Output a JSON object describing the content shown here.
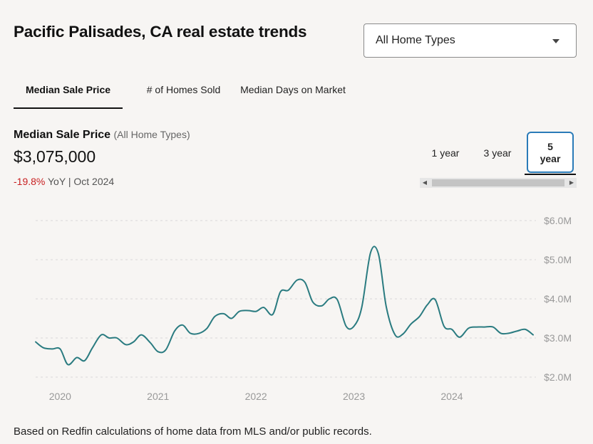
{
  "header": {
    "title": "Pacific Palisades, CA real estate trends"
  },
  "filter": {
    "selected": "All Home Types"
  },
  "tabs": [
    {
      "label": "Median Sale Price",
      "active": true
    },
    {
      "label": "# of Homes Sold",
      "active": false
    },
    {
      "label": "Median Days on Market",
      "active": false
    }
  ],
  "stat": {
    "title": "Median Sale Price",
    "subtitle": "(All Home Types)",
    "value": "$3,075,000",
    "yoy_change": "-19.8%",
    "yoy_label": "YoY",
    "separator": "|",
    "period": "Oct 2024"
  },
  "ranges": [
    {
      "label": "1 year",
      "active": false
    },
    {
      "label": "3 year",
      "active": false
    },
    {
      "label": "5 year",
      "active": true
    }
  ],
  "colors": {
    "line": "#2a7b80",
    "grid": "#d8d8d8",
    "tick": "#999999",
    "negative": "#c82021",
    "active_border": "#2a7bb8"
  },
  "footnote": "Based on Redfin calculations of home data from MLS and/or public records.",
  "chart_data": {
    "type": "line",
    "title": "",
    "xlabel": "",
    "ylabel": "",
    "ylim": [
      2.0,
      6.0
    ],
    "y_unit": "millions USD",
    "yticks": [
      2.0,
      3.0,
      4.0,
      5.0,
      6.0
    ],
    "ytick_labels": [
      "$2.0M",
      "$3.0M",
      "$4.0M",
      "$5.0M",
      "$6.0M"
    ],
    "xticks": [
      2020,
      2021,
      2022,
      2023,
      2024
    ],
    "xtick_labels": [
      "2020",
      "2021",
      "2022",
      "2023",
      "2024"
    ],
    "xlim": [
      2019.75,
      2024.83
    ],
    "grid": true,
    "legend": "none",
    "series": [
      {
        "values": [
          [
            2019.75,
            2.9
          ],
          [
            2019.83,
            2.75
          ],
          [
            2019.92,
            2.72
          ],
          [
            2020.0,
            2.72
          ],
          [
            2020.08,
            2.32
          ],
          [
            2020.17,
            2.5
          ],
          [
            2020.25,
            2.42
          ],
          [
            2020.33,
            2.75
          ],
          [
            2020.42,
            3.08
          ],
          [
            2020.5,
            3.0
          ],
          [
            2020.58,
            3.0
          ],
          [
            2020.67,
            2.83
          ],
          [
            2020.75,
            2.9
          ],
          [
            2020.83,
            3.08
          ],
          [
            2020.92,
            2.88
          ],
          [
            2021.0,
            2.65
          ],
          [
            2021.08,
            2.7
          ],
          [
            2021.17,
            3.18
          ],
          [
            2021.25,
            3.33
          ],
          [
            2021.33,
            3.12
          ],
          [
            2021.42,
            3.12
          ],
          [
            2021.5,
            3.25
          ],
          [
            2021.58,
            3.55
          ],
          [
            2021.67,
            3.62
          ],
          [
            2021.75,
            3.5
          ],
          [
            2021.83,
            3.68
          ],
          [
            2021.92,
            3.7
          ],
          [
            2022.0,
            3.68
          ],
          [
            2022.08,
            3.78
          ],
          [
            2022.17,
            3.6
          ],
          [
            2022.25,
            4.18
          ],
          [
            2022.33,
            4.22
          ],
          [
            2022.42,
            4.48
          ],
          [
            2022.5,
            4.42
          ],
          [
            2022.58,
            3.92
          ],
          [
            2022.67,
            3.82
          ],
          [
            2022.75,
            4.0
          ],
          [
            2022.83,
            3.98
          ],
          [
            2022.92,
            3.3
          ],
          [
            2023.0,
            3.3
          ],
          [
            2023.08,
            3.78
          ],
          [
            2023.17,
            5.18
          ],
          [
            2023.25,
            5.15
          ],
          [
            2023.33,
            3.8
          ],
          [
            2023.42,
            3.08
          ],
          [
            2023.5,
            3.1
          ],
          [
            2023.58,
            3.35
          ],
          [
            2023.67,
            3.55
          ],
          [
            2023.75,
            3.85
          ],
          [
            2023.83,
            3.98
          ],
          [
            2023.92,
            3.3
          ],
          [
            2024.0,
            3.22
          ],
          [
            2024.08,
            3.02
          ],
          [
            2024.17,
            3.25
          ],
          [
            2024.25,
            3.28
          ],
          [
            2024.33,
            3.28
          ],
          [
            2024.42,
            3.28
          ],
          [
            2024.5,
            3.12
          ],
          [
            2024.58,
            3.12
          ],
          [
            2024.67,
            3.18
          ],
          [
            2024.75,
            3.22
          ],
          [
            2024.83,
            3.08
          ]
        ]
      }
    ]
  }
}
